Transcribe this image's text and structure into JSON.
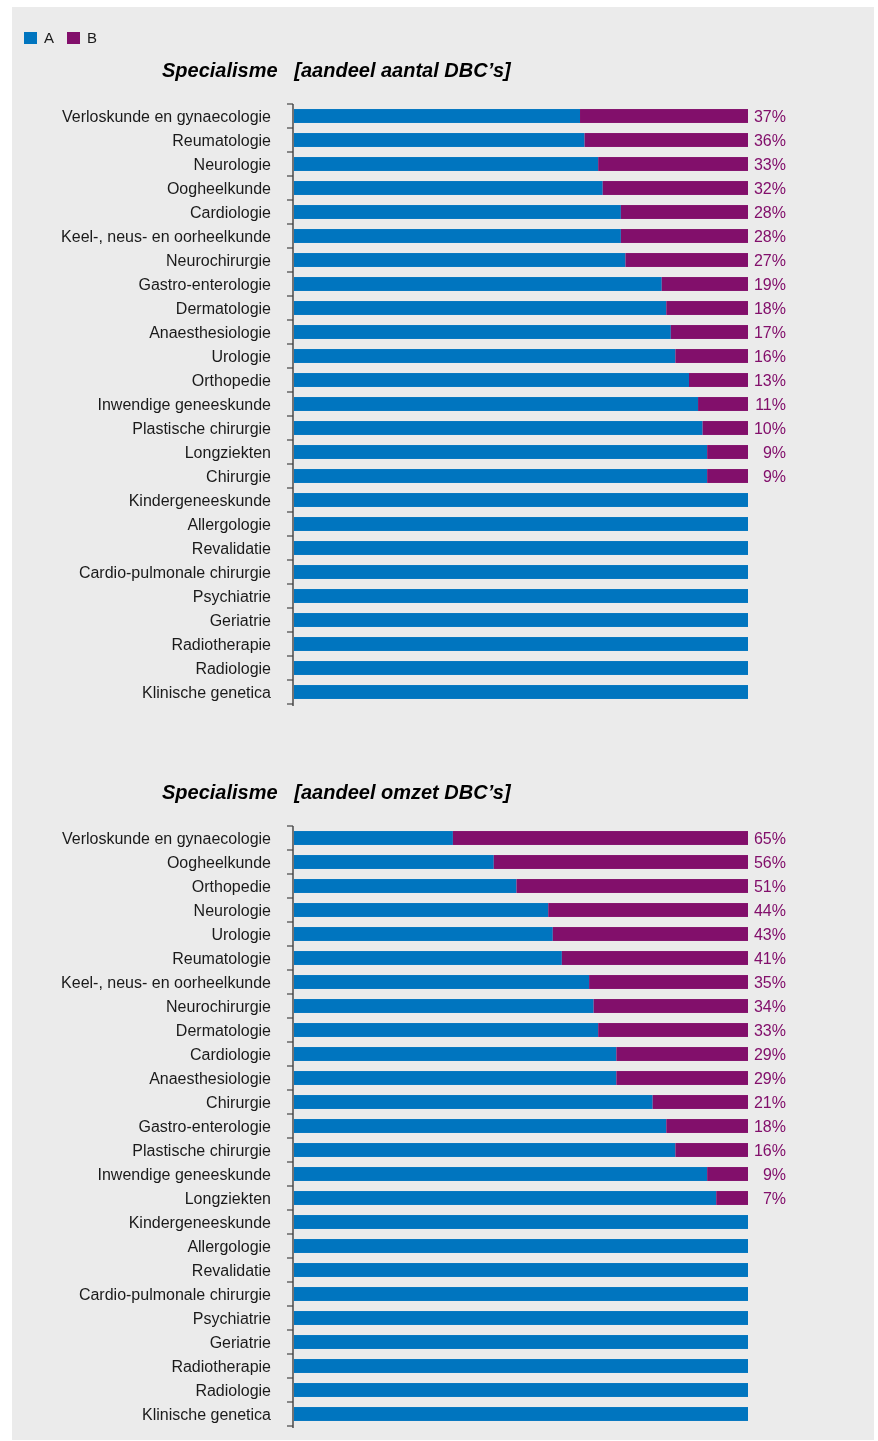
{
  "chart_data": [
    {
      "type": "bar",
      "orientation": "horizontal",
      "stacked": true,
      "title": "Specialisme   [aandeel aantal DBC’s]",
      "categories": [
        "Verloskunde en gynaecologie",
        "Reumatologie",
        "Neurologie",
        "Oogheelkunde",
        "Cardiologie",
        "Keel-, neus- en oorheelkunde",
        "Neurochirurgie",
        "Gastro-enterologie",
        "Dermatologie",
        "Anaesthesiologie",
        "Urologie",
        "Orthopedie",
        "Inwendige geneeskunde",
        "Plastische chirurgie",
        "Longziekten",
        "Chirurgie",
        "Kindergeneeskunde",
        "Allergologie",
        "Revalidatie",
        "Cardio-pulmonale chirurgie",
        "Psychiatrie",
        "Geriatrie",
        "Radiotherapie",
        "Radiologie",
        "Klinische genetica"
      ],
      "series": [
        {
          "name": "A",
          "color": "#0075bf",
          "values": [
            63,
            64,
            67,
            68,
            72,
            72,
            73,
            81,
            82,
            83,
            84,
            87,
            89,
            90,
            91,
            91,
            100,
            100,
            100,
            100,
            100,
            100,
            100,
            100,
            100
          ]
        },
        {
          "name": "B",
          "color": "#820f6b",
          "values": [
            37,
            36,
            33,
            32,
            28,
            28,
            27,
            19,
            18,
            17,
            16,
            13,
            11,
            10,
            9,
            9,
            null,
            null,
            null,
            null,
            null,
            null,
            null,
            null,
            null
          ],
          "value_labels": [
            "37%",
            "36%",
            "33%",
            "32%",
            "28%",
            "28%",
            "27%",
            "19%",
            "18%",
            "17%",
            "16%",
            "13%",
            "11%",
            "10%",
            "9%",
            "9%",
            null,
            null,
            null,
            null,
            null,
            null,
            null,
            null,
            null
          ]
        }
      ],
      "xlim": [
        0,
        100
      ],
      "legend": "top left",
      "tick_labels": "y"
    },
    {
      "type": "bar",
      "orientation": "horizontal",
      "stacked": true,
      "title": "Specialisme   [aandeel omzet DBC’s]",
      "categories": [
        "Verloskunde en gynaecologie",
        "Oogheelkunde",
        "Orthopedie",
        "Neurologie",
        "Urologie",
        "Reumatologie",
        "Keel-, neus- en oorheelkunde",
        "Neurochirurgie",
        "Dermatologie",
        "Cardiologie",
        "Anaesthesiologie",
        "Chirurgie",
        "Gastro-enterologie",
        "Plastische chirurgie",
        "Inwendige geneeskunde",
        "Longziekten",
        "Kindergeneeskunde",
        "Allergologie",
        "Revalidatie",
        "Cardio-pulmonale chirurgie",
        "Psychiatrie",
        "Geriatrie",
        "Radiotherapie",
        "Radiologie",
        "Klinische genetica"
      ],
      "series": [
        {
          "color": "#0075bf",
          "values": [
            35,
            44,
            49,
            56,
            57,
            59,
            65,
            66,
            67,
            71,
            71,
            79,
            82,
            84,
            91,
            93,
            100,
            100,
            100,
            100,
            100,
            100,
            100,
            100,
            100
          ]
        },
        {
          "color": "#820f6b",
          "values": [
            65,
            56,
            51,
            44,
            43,
            41,
            35,
            34,
            33,
            29,
            29,
            21,
            18,
            16,
            9,
            7,
            null,
            null,
            null,
            null,
            null,
            null,
            null,
            null,
            null
          ],
          "value_labels": [
            "65%",
            "56%",
            "51%",
            "44%",
            "43%",
            "41%",
            "35%",
            "34%",
            "33%",
            "29%",
            "29%",
            "21%",
            "18%",
            "16%",
            "9%",
            "7%",
            null,
            null,
            null,
            null,
            null,
            null,
            null,
            null,
            null
          ]
        }
      ],
      "xlim": [
        0,
        100
      ],
      "tick_labels": "y"
    }
  ]
}
